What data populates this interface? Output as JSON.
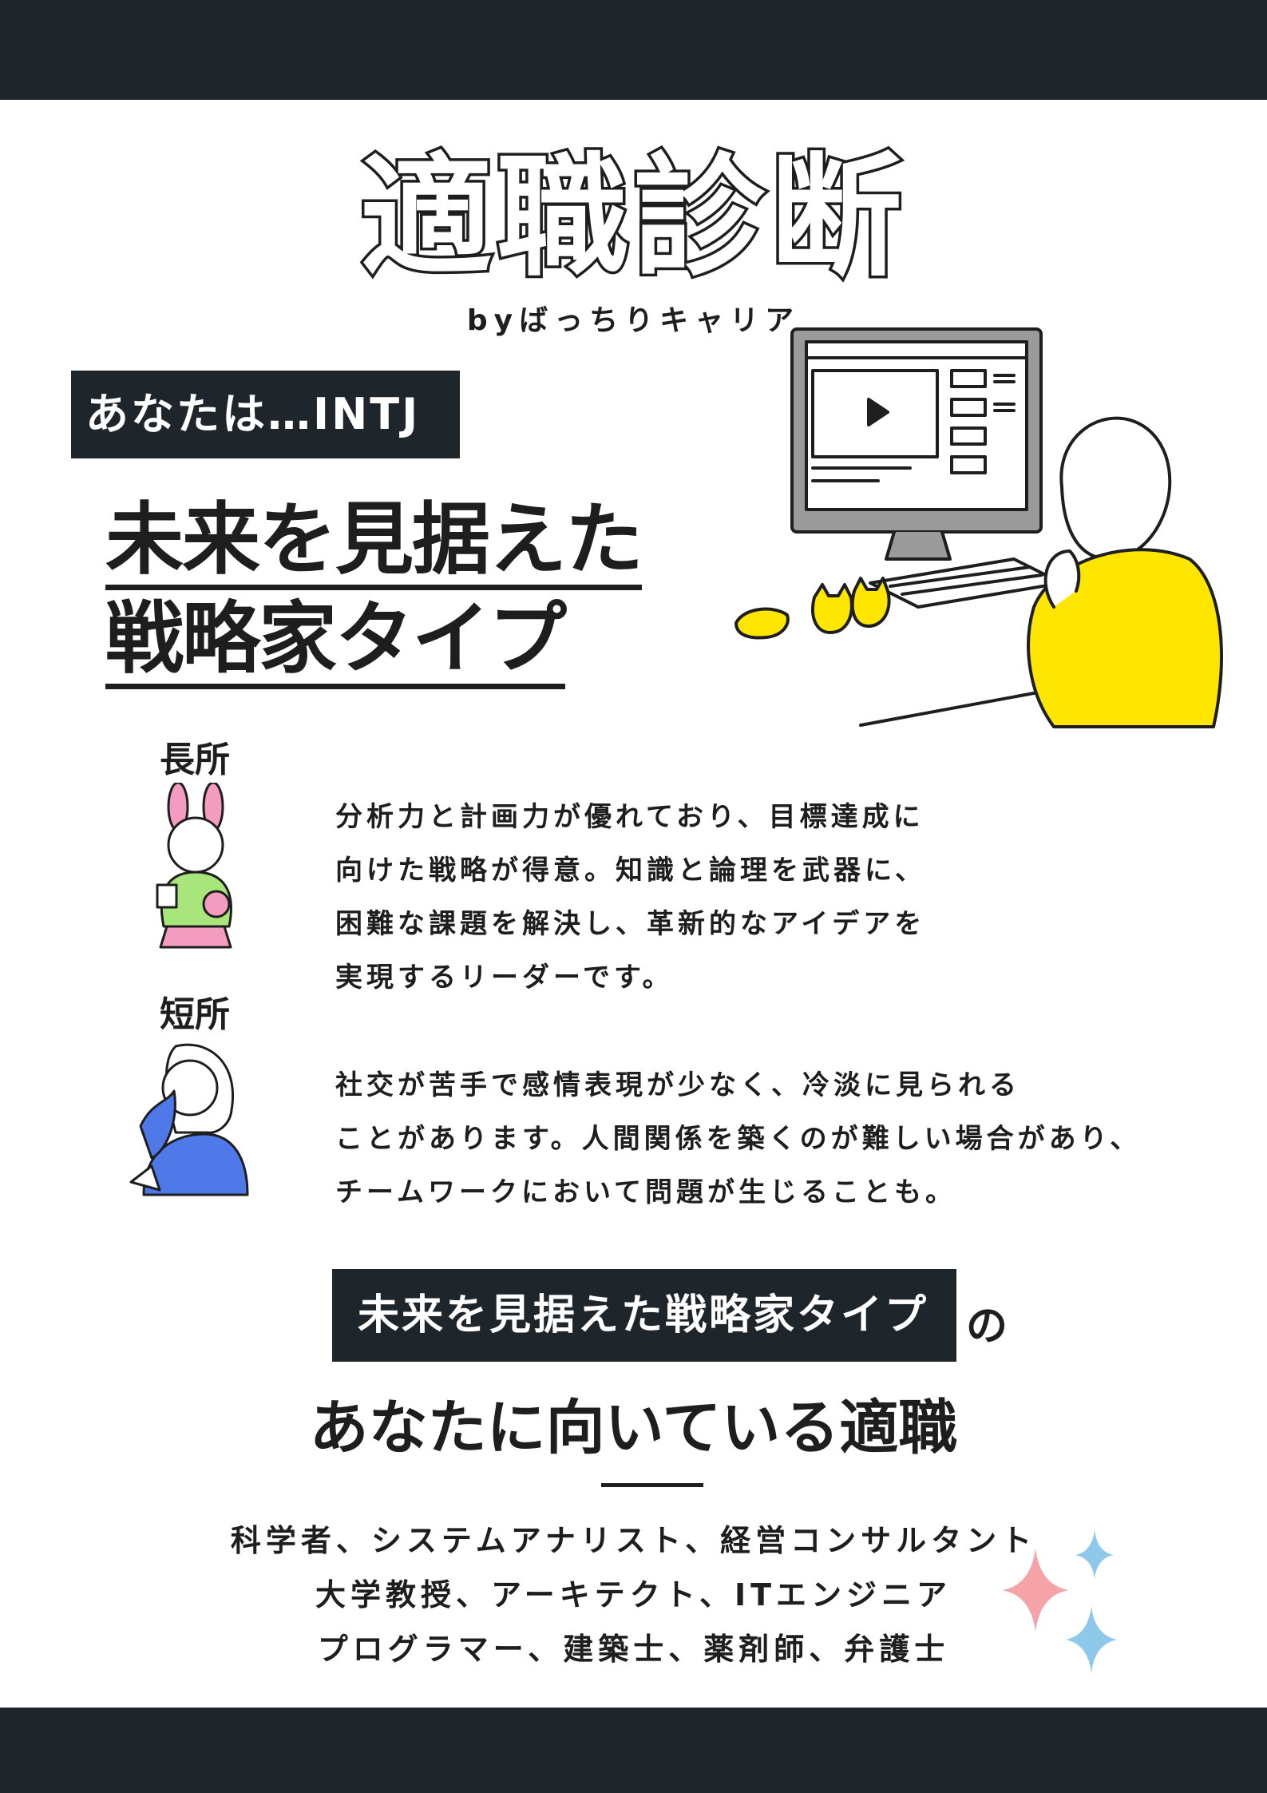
{
  "header": {
    "title": "適職診断",
    "subtitle": "byばっちりキャリア"
  },
  "result": {
    "badge": "あなたは…INTJ",
    "type_line1": "未来を見据えた",
    "type_line2": "戦略家タイプ"
  },
  "strengths": {
    "heading": "長所",
    "lines": [
      "分析力と計画力が優れており、目標達成に",
      "向けた戦略が得意。知識と論理を武器に、",
      "困難な課題を解決し、革新的なアイデアを",
      "実現するリーダーです。"
    ]
  },
  "weaknesses": {
    "heading": "短所",
    "lines": [
      "社交が苦手で感情表現が少なく、冷淡に見られる",
      "ことがあります。人間関係を築くのが難しい場合があり、",
      "チームワークにおいて問題が生じることも。"
    ]
  },
  "jobs": {
    "badge": "未来を見据えた戦略家タイプ",
    "particle": "の",
    "heading": "あなたに向いている適職",
    "lines": [
      "科学者、システムアナリスト、経営コンサルタント",
      "大学教授、アーキテクト、ITエンジニア",
      "プログラマー、建築士、薬剤師、弁護士"
    ]
  },
  "colors": {
    "dark": "#1f262b",
    "accent_yellow": "#ffe600",
    "sparkle_pink": "#f6a3a8",
    "sparkle_blue": "#8ec9ec",
    "shirt_blue": "#4f79e8",
    "top_green": "#a8e57a",
    "bunny_pink": "#f39cc0"
  },
  "icons": [
    "computer-icon",
    "girl-at-computer-icon",
    "cat-figure-icon",
    "bunny-girl-icon",
    "thinking-girl-icon",
    "sparkle-icon"
  ]
}
